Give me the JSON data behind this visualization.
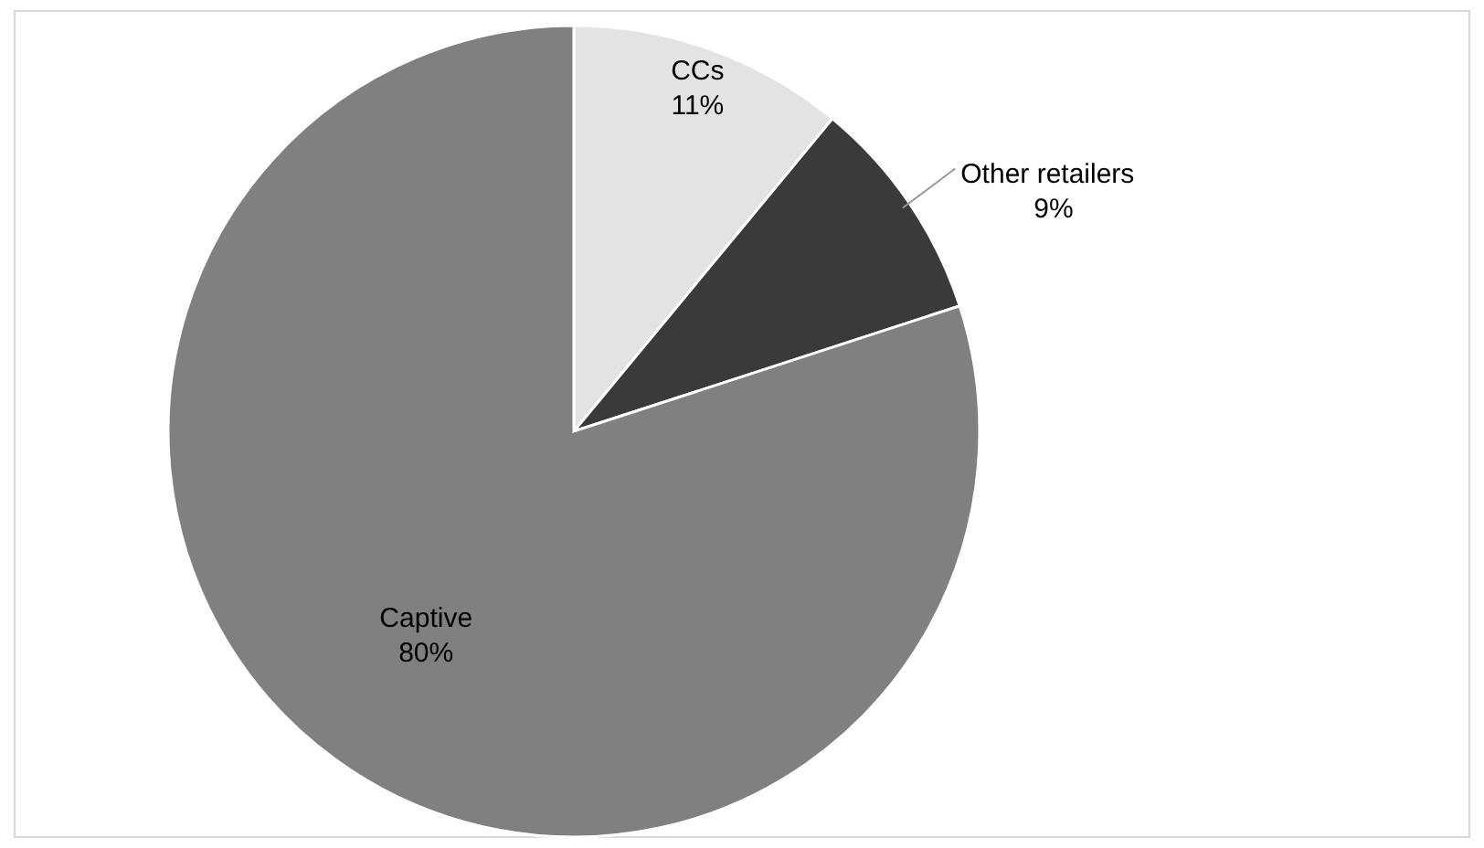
{
  "chart_data": {
    "type": "pie",
    "categories": [
      "CCs",
      "Other retailers",
      "Captive"
    ],
    "values": [
      11,
      9,
      80
    ],
    "colors": [
      "#e3e3e3",
      "#3a3a3a",
      "#808080"
    ],
    "value_labels": [
      "11%",
      "9%",
      "80%"
    ]
  }
}
